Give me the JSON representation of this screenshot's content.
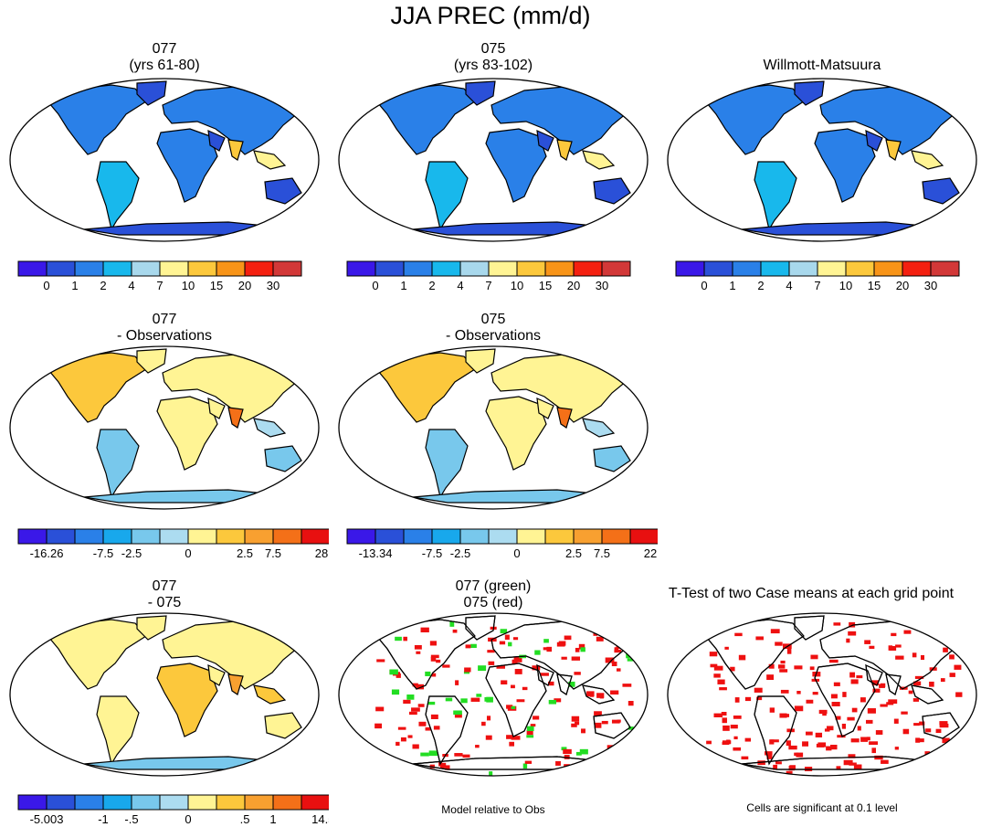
{
  "title": "JJA PREC (mm/d)",
  "panels": [
    {
      "id": "p077",
      "line1": "077",
      "line2": "(yrs 61-80)",
      "style": "abs"
    },
    {
      "id": "p075",
      "line1": "075",
      "line2": "(yrs 83-102)",
      "style": "abs"
    },
    {
      "id": "pobs",
      "line1": "Willmott-Matsuura",
      "line2": "",
      "style": "abs"
    },
    {
      "id": "d077",
      "line1": "077",
      "line2": "- Observations",
      "style": "bias"
    },
    {
      "id": "d075",
      "line1": "075",
      "line2": "- Observations",
      "style": "bias"
    },
    {
      "id": "ddiff",
      "line1": "077",
      "line2": "- 075",
      "style": "diff"
    },
    {
      "id": "sig",
      "line1": "077 (green)",
      "line2": "075 (red)",
      "style": "sig"
    },
    {
      "id": "ttest",
      "line1": "T-Test of two Case means at each grid point",
      "line2": "",
      "style": "ttest"
    }
  ],
  "notes": {
    "model_vs_obs": "Model relative to Obs",
    "significance": "Cells are significant at 0.1 level"
  },
  "colors": {
    "abs_cbar": [
      "#3a18e8",
      "#2a50d8",
      "#2a80e8",
      "#18b8ec",
      "#a8d8ec",
      "#fff494",
      "#fcc83c",
      "#f89418",
      "#f42010",
      "#d23838"
    ],
    "bias_cbar": [
      "#3a18e8",
      "#2a50d8",
      "#2a80e8",
      "#18a8ec",
      "#78c8ec",
      "#acdcf0",
      "#fff494",
      "#fcc83c",
      "#f8a030",
      "#f47018",
      "#e81010",
      "#d04848"
    ],
    "sig_model1": "#22dd22",
    "sig_model2": "#ee1010"
  },
  "chart_data": [
    {
      "type": "heatmap",
      "panel": "p077",
      "legend": "colorbar-bottom",
      "colorbar_labels": [
        "0",
        "1",
        "2",
        "4",
        "7",
        "10",
        "15",
        "20",
        "30"
      ]
    },
    {
      "type": "heatmap",
      "panel": "p075",
      "legend": "colorbar-bottom",
      "colorbar_labels": [
        "0",
        "1",
        "2",
        "4",
        "7",
        "10",
        "15",
        "20",
        "30"
      ]
    },
    {
      "type": "heatmap",
      "panel": "pobs",
      "legend": "colorbar-bottom",
      "colorbar_labels": [
        "0",
        "1",
        "2",
        "4",
        "7",
        "10",
        "15",
        "20",
        "30"
      ]
    },
    {
      "type": "heatmap",
      "panel": "d077",
      "legend": "colorbar-bottom",
      "colorbar_labels": [
        "-16.26",
        "-7.5",
        "-2.5",
        "0",
        "2.5",
        "7.5",
        "28.63"
      ]
    },
    {
      "type": "heatmap",
      "panel": "d075",
      "legend": "colorbar-bottom",
      "colorbar_labels": [
        "-13.34",
        "-7.5",
        "-2.5",
        "0",
        "2.5",
        "7.5",
        "22.31"
      ]
    },
    {
      "type": "heatmap",
      "panel": "ddiff",
      "legend": "colorbar-bottom",
      "colorbar_labels": [
        "-5.003",
        "-1",
        "-.5",
        "0",
        ".5",
        "1",
        "14.508"
      ]
    },
    {
      "type": "heatmap",
      "panel": "sig"
    },
    {
      "type": "heatmap",
      "panel": "ttest"
    }
  ]
}
